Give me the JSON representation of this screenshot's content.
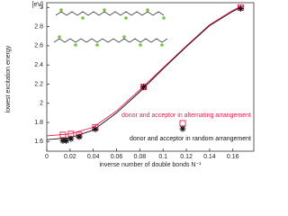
{
  "chart_data": {
    "type": "scatter",
    "x_label": "inverse number of double bonds  N⁻¹",
    "y_label": "lowest excitation energy",
    "y_unit": "[eV]",
    "xlim": [
      0,
      0.178
    ],
    "ylim": [
      1.5,
      3.05
    ],
    "xticks": [
      0,
      0.02,
      0.04,
      0.06,
      0.08,
      {
        "value": 0.1,
        "label": "0.1"
      },
      0.12,
      0.14,
      0.16
    ],
    "yticks": [
      1.6,
      1.8,
      2,
      2.2,
      2.4,
      2.6,
      2.8,
      3
    ],
    "series": [
      {
        "name": "donor and acceptor in alternating arrangement",
        "color": "#e8194b",
        "marker": "square",
        "x": [
          0.0139,
          0.0208,
          0.0278,
          0.0417,
          0.0833,
          0.1667
        ],
        "values": [
          1.67,
          1.68,
          1.67,
          1.75,
          2.17,
          3.0
        ]
      },
      {
        "name": "donor and acceptor in random arrangement",
        "color": "#111111",
        "marker": "star",
        "x": [
          0.0139,
          0.0167,
          0.0208,
          0.0278,
          0.0417,
          0.0833,
          0.1667
        ],
        "values": [
          1.61,
          1.61,
          1.63,
          1.65,
          1.73,
          2.17,
          2.99
        ]
      },
      {
        "color": "#e8194b",
        "marker": "line",
        "x": [
          0,
          0.02,
          0.04,
          0.06,
          0.08,
          0.1,
          0.12,
          0.14,
          0.16,
          0.1667
        ],
        "values": [
          1.66,
          1.68,
          1.75,
          1.92,
          2.14,
          2.37,
          2.6,
          2.82,
          2.97,
          3.01
        ]
      },
      {
        "color": "#111111",
        "marker": "line",
        "x": [
          0,
          0.02,
          0.04,
          0.06,
          0.08,
          0.1,
          0.12,
          0.14,
          0.16,
          0.1667
        ],
        "values": [
          1.62,
          1.64,
          1.72,
          1.9,
          2.12,
          2.36,
          2.59,
          2.81,
          2.96,
          3.0
        ]
      }
    ]
  }
}
